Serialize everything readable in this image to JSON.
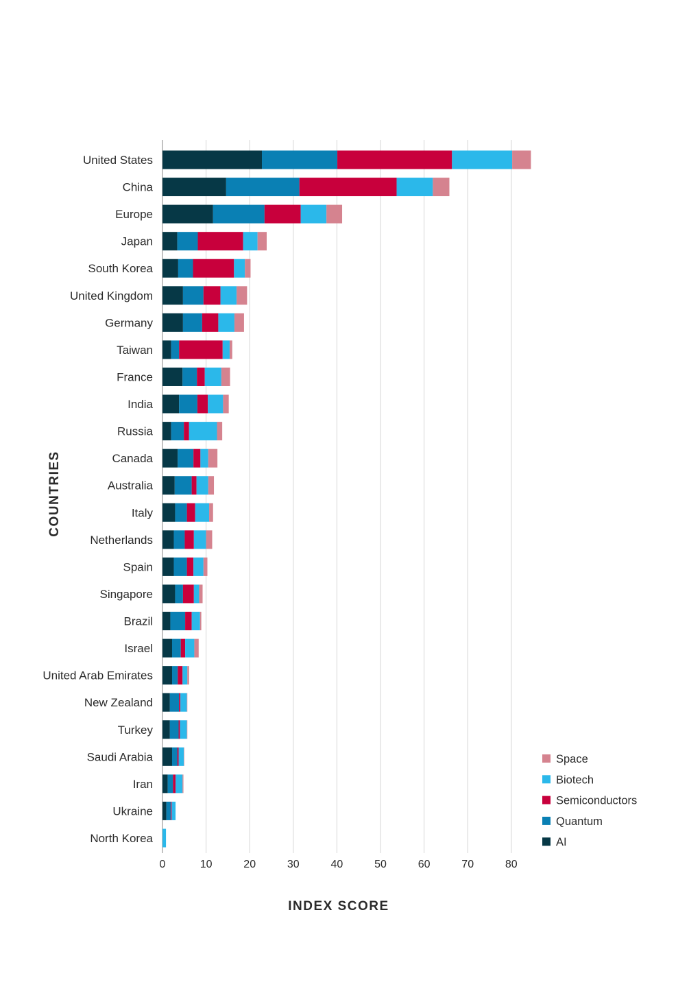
{
  "chart_data": {
    "type": "bar",
    "orientation": "horizontal",
    "stacked": true,
    "title": "",
    "xlabel": "INDEX SCORE",
    "ylabel": "COUNTRIES",
    "xlim": [
      0,
      85
    ],
    "xticks": [
      0,
      10,
      20,
      30,
      40,
      50,
      60,
      70,
      80
    ],
    "grid": "vertical",
    "legend_position": "bottom-right",
    "categories": [
      "United States",
      "China",
      "Europe",
      "Japan",
      "South Korea",
      "United Kingdom",
      "Germany",
      "Taiwan",
      "France",
      "India",
      "Russia",
      "Canada",
      "Australia",
      "Italy",
      "Netherlands",
      "Spain",
      "Singapore",
      "Brazil",
      "Israel",
      "United Arab Emirates",
      "New Zealand",
      "Turkey",
      "Saudi Arabia",
      "Iran",
      "Ukraine",
      "North Korea"
    ],
    "series": [
      {
        "name": "AI",
        "color": "#063846",
        "values": [
          22.8,
          14.6,
          11.6,
          3.4,
          3.6,
          4.7,
          4.7,
          2.0,
          4.6,
          3.8,
          2.0,
          3.5,
          2.8,
          2.9,
          2.6,
          2.6,
          2.9,
          1.8,
          2.2,
          2.2,
          1.7,
          1.7,
          2.2,
          1.2,
          0.9,
          0
        ]
      },
      {
        "name": "Quantum",
        "color": "#0a80b4",
        "values": [
          17.3,
          16.8,
          11.8,
          4.7,
          3.4,
          4.7,
          4.4,
          1.8,
          3.3,
          4.2,
          2.9,
          3.6,
          3.9,
          2.7,
          2.5,
          3.0,
          1.8,
          3.4,
          2.0,
          1.3,
          2.1,
          2.0,
          1.2,
          1.2,
          1.0,
          0
        ]
      },
      {
        "name": "Semiconductors",
        "color": "#c8003c",
        "values": [
          26.3,
          22.3,
          8.3,
          10.4,
          9.4,
          3.9,
          3.7,
          10.0,
          1.8,
          2.4,
          1.2,
          1.6,
          1.1,
          1.9,
          2.1,
          1.5,
          2.5,
          1.5,
          1.0,
          1.1,
          0.3,
          0.3,
          0.3,
          0.6,
          0.2,
          0
        ]
      },
      {
        "name": "Biotech",
        "color": "#2bb8ea",
        "values": [
          13.8,
          8.3,
          5.9,
          3.3,
          2.5,
          3.7,
          3.7,
          1.6,
          3.8,
          3.5,
          6.4,
          1.8,
          2.7,
          3.2,
          2.8,
          2.3,
          1.2,
          1.9,
          2.1,
          1.1,
          1.5,
          1.6,
          1.2,
          1.6,
          0.9,
          0.8
        ]
      },
      {
        "name": "Space",
        "color": "#d5838f",
        "values": [
          4.3,
          3.8,
          3.6,
          2.1,
          1.3,
          2.4,
          2.2,
          0.6,
          2.0,
          1.3,
          1.2,
          2.1,
          1.3,
          0.9,
          1.4,
          0.9,
          0.8,
          0.3,
          1.0,
          0.4,
          0.1,
          0.1,
          0.1,
          0.2,
          0,
          0
        ]
      }
    ],
    "legend_order": [
      "Space",
      "Biotech",
      "Semiconductors",
      "Quantum",
      "AI"
    ]
  }
}
